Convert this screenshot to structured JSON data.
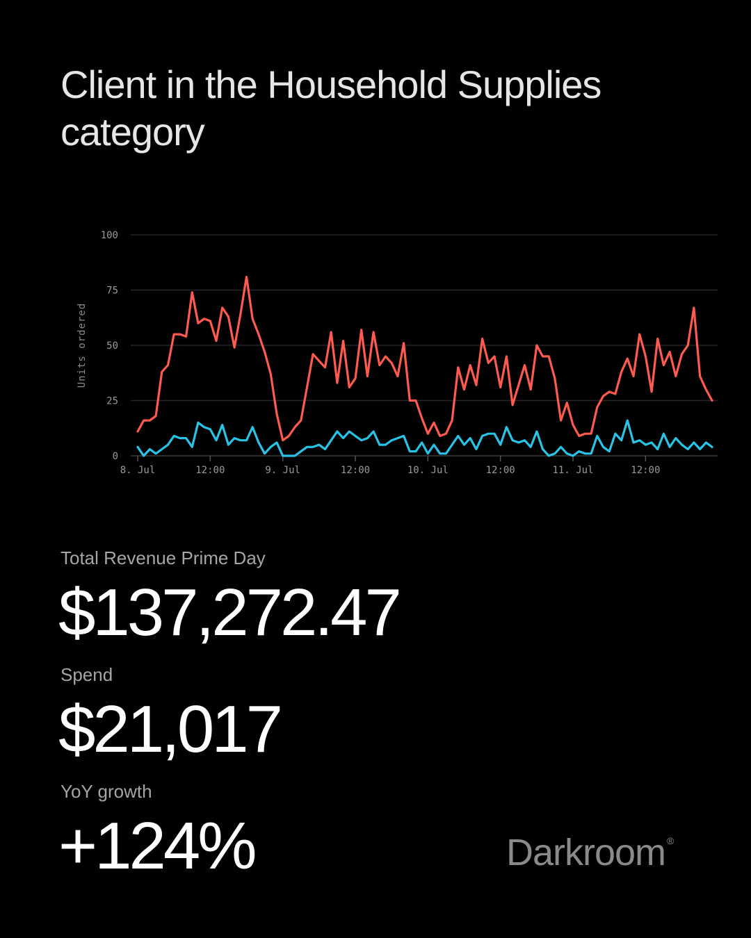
{
  "title": {
    "line1": "Client in the Household Supplies",
    "line2": "category"
  },
  "metrics": {
    "revenue_label": "Total Revenue Prime Day",
    "revenue_value": "$137,272.47",
    "spend_label": "Spend",
    "spend_value": "$21,017",
    "yoy_label": "YoY growth",
    "yoy_value": "+124%"
  },
  "brand": {
    "name": "Darkroom",
    "mark": "®"
  },
  "chart_data": {
    "type": "line",
    "title": "",
    "xlabel": "",
    "ylabel": "Units ordered",
    "ylim": [
      0,
      100
    ],
    "yticks": [
      0,
      25,
      50,
      75,
      100
    ],
    "xticks": [
      {
        "x": 0,
        "label": "8. Jul"
      },
      {
        "x": 12,
        "label": "12:00"
      },
      {
        "x": 24,
        "label": "9. Jul"
      },
      {
        "x": 36,
        "label": "12:00"
      },
      {
        "x": 48,
        "label": "10. Jul"
      },
      {
        "x": 60,
        "label": "12:00"
      },
      {
        "x": 72,
        "label": "11. Jul"
      },
      {
        "x": 84,
        "label": "12:00"
      }
    ],
    "xlim": [
      0,
      95
    ],
    "grid": true,
    "legend": "none",
    "series": [
      {
        "color": "#ff5a4e",
        "values": [
          11,
          16,
          16,
          18,
          38,
          41,
          55,
          55,
          54,
          74,
          60,
          62,
          61,
          52,
          67,
          63,
          49,
          64,
          81,
          62,
          55,
          47,
          37,
          19,
          7,
          9,
          13,
          16,
          31,
          46,
          43,
          40,
          56,
          33,
          52,
          31,
          35,
          57,
          36,
          56,
          41,
          45,
          42,
          36,
          51,
          25,
          25,
          17,
          10,
          15,
          9,
          10,
          16,
          40,
          30,
          41,
          32,
          53,
          42,
          45,
          31,
          45,
          23,
          32,
          41,
          30,
          50,
          45,
          45,
          35,
          16,
          24,
          14,
          9,
          10,
          10,
          22,
          27,
          29,
          28,
          38,
          44,
          36,
          55,
          45,
          29,
          53,
          41,
          47,
          36,
          46,
          50,
          67,
          36,
          30,
          25
        ],
        "x_start": 0,
        "x_step": 1
      },
      {
        "color": "#29c3e8",
        "values": [
          4,
          0,
          3,
          1,
          3,
          5,
          9,
          8,
          8,
          4,
          15,
          13,
          12,
          7,
          14,
          5,
          8,
          7,
          7,
          13,
          6,
          1,
          4,
          6,
          0,
          0,
          0,
          2,
          4,
          4,
          5,
          3,
          7,
          11,
          8,
          11,
          9,
          7,
          8,
          11,
          5,
          5,
          7,
          8,
          9,
          2,
          2,
          6,
          1,
          5,
          1,
          1,
          5,
          9,
          5,
          8,
          3,
          9,
          10,
          10,
          5,
          13,
          7,
          6,
          7,
          4,
          11,
          3,
          0,
          1,
          4,
          1,
          0,
          2,
          1,
          1,
          9,
          4,
          2,
          10,
          7,
          16,
          6,
          7,
          5,
          6,
          3,
          10,
          4,
          8,
          5,
          3,
          6,
          3,
          6,
          4
        ],
        "x_start": 0,
        "x_step": 1
      }
    ]
  }
}
